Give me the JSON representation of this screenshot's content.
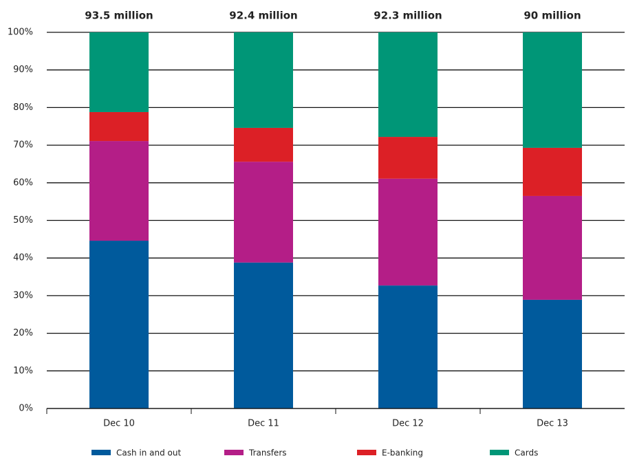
{
  "chart_data": {
    "type": "stacked_bar",
    "categories": [
      "Dec 10",
      "Dec 11",
      "Dec 12",
      "Dec 13"
    ],
    "annotations": [
      "93.5 million",
      "92.4 million",
      "92.3 million",
      "90 million"
    ],
    "series": [
      {
        "name": "Cash in and out",
        "color": "#005a9c",
        "values": [
          44.6,
          38.8,
          32.7,
          28.9
        ]
      },
      {
        "name": "Transfers",
        "color": "#b41e87",
        "values": [
          26.5,
          26.8,
          28.4,
          27.6
        ]
      },
      {
        "name": "E-banking",
        "color": "#dc2026",
        "values": [
          7.7,
          9.0,
          11.1,
          12.8
        ]
      },
      {
        "name": "Cards",
        "color": "#009677",
        "values": [
          21.2,
          25.4,
          27.8,
          30.7
        ]
      }
    ],
    "ylim": [
      0,
      100
    ],
    "yticks": [
      {
        "value": 0,
        "label": "0%"
      },
      {
        "value": 10,
        "label": "10%"
      },
      {
        "value": 20,
        "label": "20%"
      },
      {
        "value": 30,
        "label": "30%"
      },
      {
        "value": 40,
        "label": "40%"
      },
      {
        "value": 50,
        "label": "50%"
      },
      {
        "value": 60,
        "label": "60%"
      },
      {
        "value": 70,
        "label": "70%"
      },
      {
        "value": 80,
        "label": "80%"
      },
      {
        "value": 90,
        "label": "90%"
      },
      {
        "value": 100,
        "label": "100%"
      }
    ],
    "grid": true
  }
}
